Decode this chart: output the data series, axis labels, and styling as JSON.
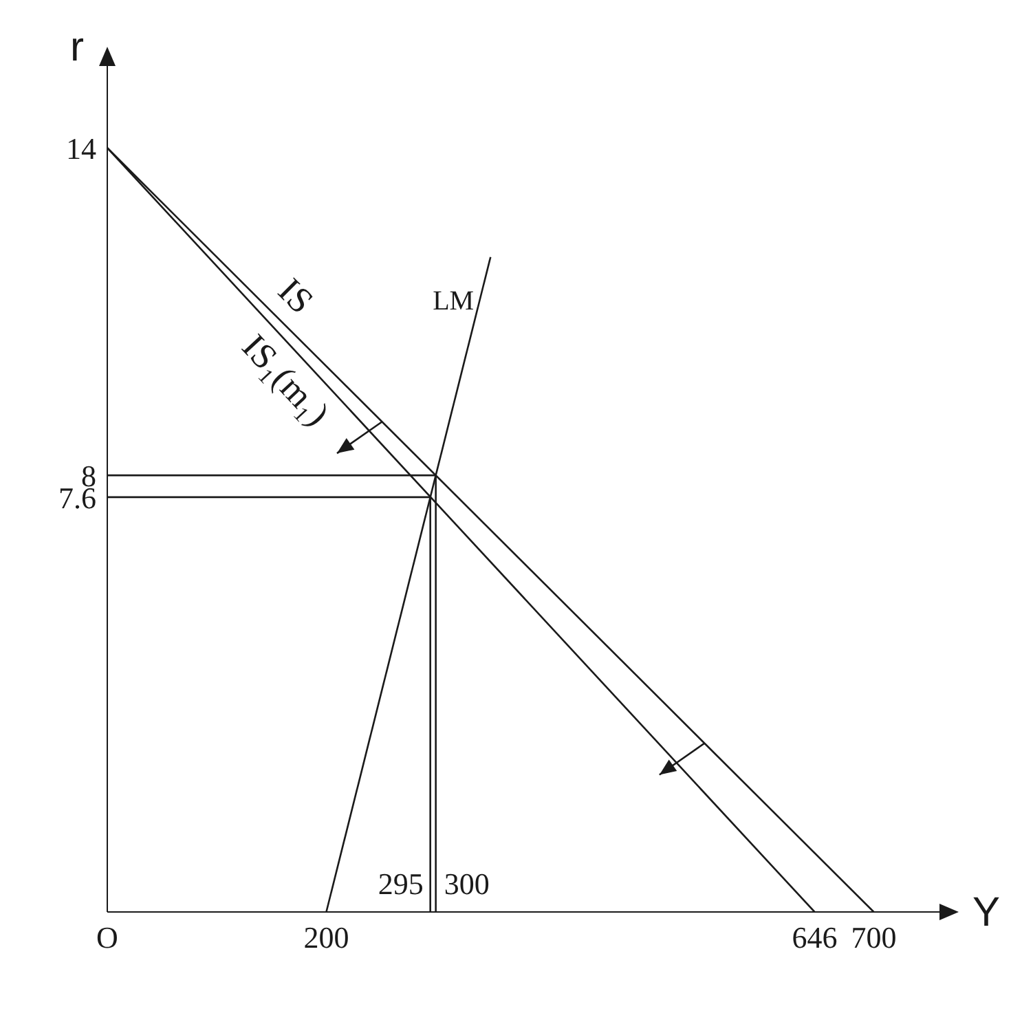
{
  "chart_data": {
    "type": "line",
    "xlabel": "Y",
    "ylabel": "r",
    "xlim": [
      0,
      760
    ],
    "ylim": [
      0,
      15.5
    ],
    "xticks": [
      {
        "value": 0,
        "label": "O"
      },
      200,
      646,
      700
    ],
    "annotations": [
      {
        "text": "295",
        "x": 295,
        "y": 0
      },
      {
        "text": "300",
        "x": 300,
        "y": 0
      }
    ],
    "yticks": [
      7.6,
      8,
      14
    ],
    "grid": false,
    "legend": false,
    "marker": "none",
    "line_style": "solid",
    "series": [
      {
        "name": "IS",
        "color": "#1a1a1a",
        "x": [
          0,
          700
        ],
        "values": [
          14,
          0
        ]
      },
      {
        "name": "IS₁(m₁)",
        "color": "#1a1a1a",
        "x": [
          0,
          646
        ],
        "values": [
          14,
          0
        ]
      },
      {
        "name": "LM",
        "color": "#1a1a1a",
        "x": [
          200,
          350
        ],
        "values": [
          0,
          12
        ]
      },
      {
        "color": "#1a1a1a",
        "x": [
          0,
          300
        ],
        "values": [
          8,
          8
        ]
      },
      {
        "color": "#1a1a1a",
        "x": [
          0,
          295
        ],
        "values": [
          7.6,
          7.6
        ]
      },
      {
        "color": "#1a1a1a",
        "x": [
          300,
          300
        ],
        "values": [
          0,
          8
        ]
      },
      {
        "color": "#1a1a1a",
        "x": [
          295,
          295
        ],
        "values": [
          0,
          7.6
        ]
      }
    ]
  }
}
